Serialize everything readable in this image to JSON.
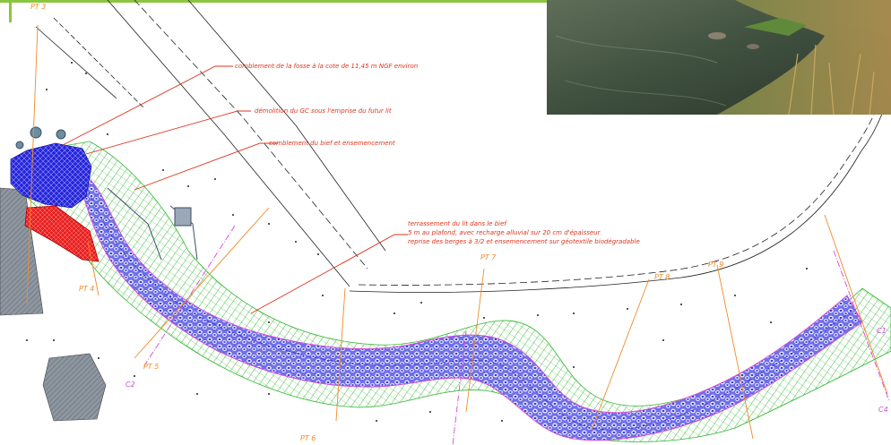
{
  "annotations": {
    "a1": "comblement de la fosse à la cote de 11,45 m NGF environ",
    "a2": "démolition du GC sous l'emprise du futur lit",
    "a3": "comblement du bief et ensemencement",
    "a4_l1": "terrassement du lit dans le bief",
    "a4_l2": "5 m au plafond, avec recharge alluvial sur 20 cm d'épaisseur",
    "a4_l3": "reprise des berges à 3/2 et ensemencement sur géotextile biodégradable"
  },
  "profiles": {
    "pt3": "PT 3",
    "pt4": "PT 4",
    "pt5": "PT 5",
    "pt6a": "PT 6",
    "pt6b": "PT 6",
    "pt7": "PT 7",
    "pt8": "PT 8",
    "pt9": "PT 9"
  },
  "sections": {
    "c1": "C1",
    "c2": "C2",
    "c4": "C4"
  },
  "colors": {
    "channel_fill": "#6f6fe8",
    "bank_hatch": "#2fb52f",
    "fill_zone": "#2424d8",
    "demolition_zone": "#e82020",
    "annotation": "#e0331c",
    "profile_line": "#f08a2a",
    "section_line": "#d24ad8",
    "header_bar": "#8cc63f"
  },
  "icons": {
    "photo": "river-photo-inset"
  }
}
